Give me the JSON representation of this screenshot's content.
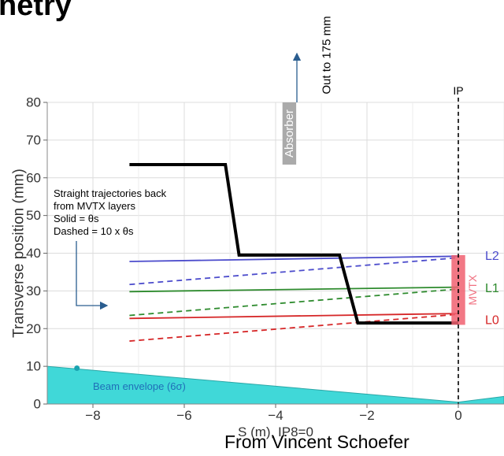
{
  "slide": {
    "title_fragment": "netry",
    "credit": "From Vincent Schoefer"
  },
  "chart_data": {
    "type": "line",
    "xlabel": "S (m), IP8=0",
    "ylabel": "Transverse position (mm)",
    "xlim": [
      -9,
      1
    ],
    "ylim": [
      0,
      80
    ],
    "xticks": [
      -8,
      -6,
      -4,
      -2,
      0
    ],
    "xtick_labels": [
      "−8",
      "−6",
      "−4",
      "−2",
      "0"
    ],
    "yticks": [
      0,
      10,
      20,
      30,
      40,
      50,
      60,
      70,
      80
    ],
    "grid": true,
    "aperture": {
      "name": "aperture",
      "color": "#000000",
      "points": [
        [
          -7.2,
          63.5
        ],
        [
          -5.1,
          63.5
        ],
        [
          -4.8,
          39.5
        ],
        [
          -2.6,
          39.5
        ],
        [
          -2.2,
          21.5
        ],
        [
          0,
          21.5
        ]
      ]
    },
    "trajectories": [
      {
        "layer": "L2",
        "style": "solid",
        "color": "#4c4ccc",
        "x": [
          -7.2,
          0
        ],
        "y": [
          37.8,
          39.2
        ]
      },
      {
        "layer": "L2",
        "style": "dashed",
        "color": "#4c4ccc",
        "x": [
          -7.2,
          0
        ],
        "y": [
          31.7,
          38.8
        ]
      },
      {
        "layer": "L1",
        "style": "solid",
        "color": "#2e8b2e",
        "x": [
          -7.2,
          0
        ],
        "y": [
          29.8,
          31.0
        ]
      },
      {
        "layer": "L1",
        "style": "dashed",
        "color": "#2e8b2e",
        "x": [
          -7.2,
          0
        ],
        "y": [
          23.5,
          30.5
        ]
      },
      {
        "layer": "L0",
        "style": "solid",
        "color": "#d62728",
        "x": [
          -7.2,
          0
        ],
        "y": [
          22.7,
          24.0
        ]
      },
      {
        "layer": "L0",
        "style": "dashed",
        "color": "#d62728",
        "x": [
          -7.2,
          0
        ],
        "y": [
          16.7,
          23.8
        ]
      }
    ],
    "beam_envelope": {
      "label": "Beam envelope (6σ)",
      "color": "#40d8d8",
      "points": [
        [
          -9,
          10
        ],
        [
          0,
          0.5
        ],
        [
          1,
          2
        ]
      ]
    },
    "absorber": {
      "label": "Absorber",
      "x_range": [
        -3.85,
        -3.55
      ],
      "y_range": [
        63.5,
        80
      ],
      "color": "#aaaaaa",
      "note": "Out to 175 mm"
    },
    "mvtx": {
      "label": "MVTX",
      "x_range": [
        -0.15,
        0.15
      ],
      "y_range": [
        21,
        39.5
      ],
      "color": "#f06070"
    },
    "ip": {
      "label": "IP",
      "x": 0
    },
    "layer_labels": [
      {
        "text": "L2",
        "y": 39.5,
        "color": "#4c4ccc"
      },
      {
        "text": "L1",
        "y": 31,
        "color": "#2e8b2e"
      },
      {
        "text": "L0",
        "y": 22.5,
        "color": "#d62728"
      }
    ],
    "annotation": {
      "lines": [
        "Straight trajectories back",
        "from MVTX layers",
        "Solid = θs",
        "Dashed = 10 x θs"
      ]
    },
    "beam_marker": {
      "x": -8.35,
      "y": 9.5
    }
  }
}
